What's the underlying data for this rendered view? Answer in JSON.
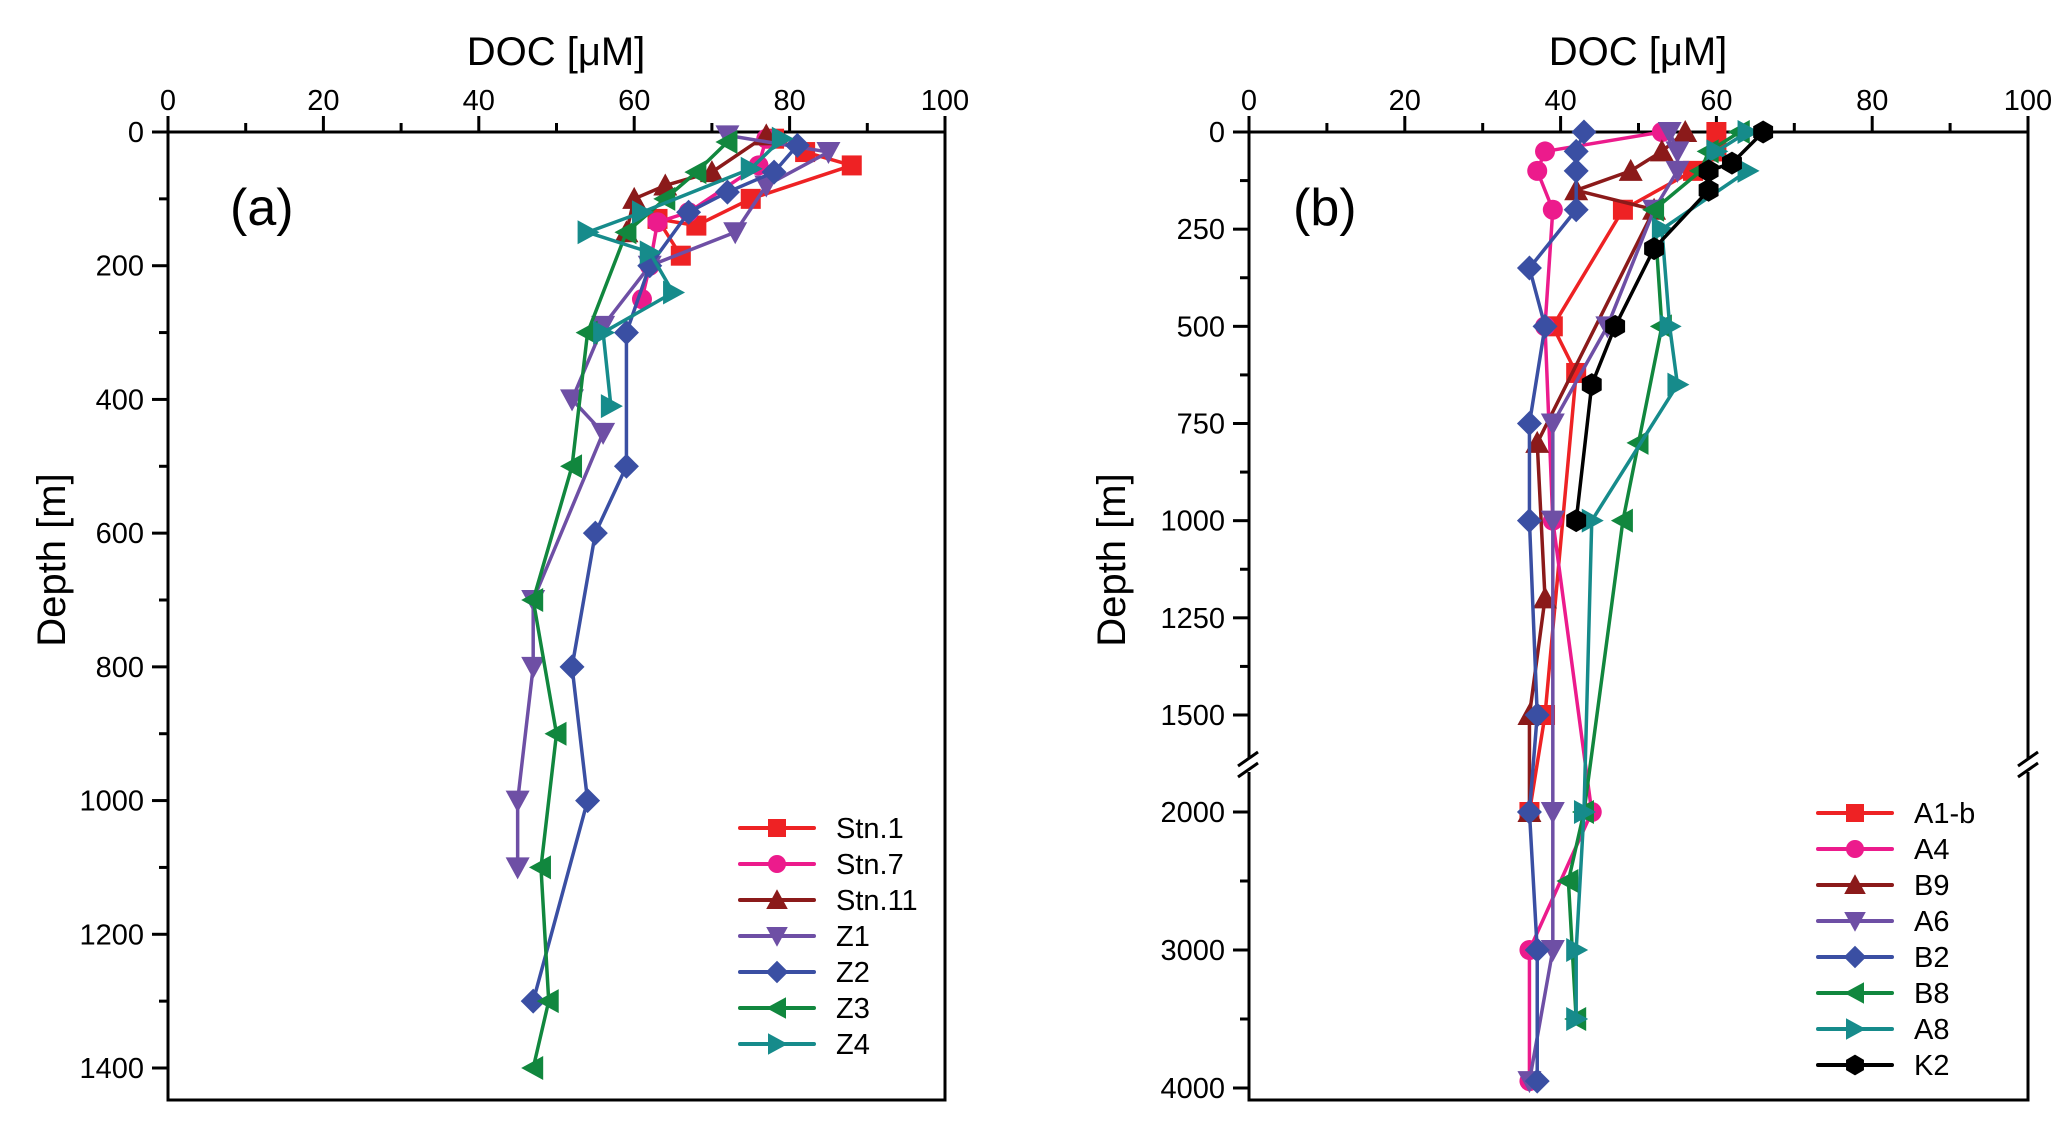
{
  "chart_data": [
    {
      "type": "line",
      "panel_label": "(a)",
      "xlabel": "DOC [μM]",
      "ylabel": "Depth [m]",
      "xlim": [
        0,
        100
      ],
      "ylim": [
        0,
        1400
      ],
      "y_inverted": true,
      "x_axis_position": "top",
      "xticks": [
        0,
        20,
        40,
        60,
        80,
        100
      ],
      "yticks": [
        0,
        200,
        400,
        600,
        800,
        1000,
        1200,
        1400
      ],
      "grid": false,
      "legend_position": "bottom-right",
      "series": [
        {
          "name": "Stn.1",
          "color": "#ee2224",
          "marker": "square",
          "points": [
            [
              78,
              10
            ],
            [
              82,
              30
            ],
            [
              88,
              50
            ],
            [
              75,
              100
            ],
            [
              68,
              140
            ],
            [
              63,
              130
            ],
            [
              66,
              185
            ]
          ]
        },
        {
          "name": "Stn.7",
          "color": "#ec1b8c",
          "marker": "circle",
          "points": [
            [
              77,
              10
            ],
            [
              76,
              50
            ],
            [
              67,
              120
            ],
            [
              63,
              135
            ],
            [
              62,
              200
            ],
            [
              61,
              250
            ]
          ]
        },
        {
          "name": "Stn.11",
          "color": "#8b1a1a",
          "marker": "triangle-up",
          "points": [
            [
              77,
              5
            ],
            [
              70,
              60
            ],
            [
              64,
              80
            ],
            [
              60,
              100
            ],
            [
              59,
              150
            ]
          ]
        },
        {
          "name": "Z1",
          "color": "#6e4fa5",
          "marker": "triangle-down",
          "points": [
            [
              72,
              5
            ],
            [
              85,
              30
            ],
            [
              77,
              80
            ],
            [
              73,
              150
            ],
            [
              62,
              200
            ],
            [
              56,
              290
            ],
            [
              52,
              400
            ],
            [
              56,
              450
            ],
            [
              47,
              700
            ],
            [
              47,
              800
            ],
            [
              45,
              1000
            ],
            [
              45,
              1100
            ]
          ]
        },
        {
          "name": "Z2",
          "color": "#3a4fa3",
          "marker": "diamond",
          "points": [
            [
              81,
              20
            ],
            [
              78,
              60
            ],
            [
              72,
              90
            ],
            [
              67,
              120
            ],
            [
              62,
              200
            ],
            [
              59,
              300
            ],
            [
              59,
              500
            ],
            [
              55,
              600
            ],
            [
              52,
              800
            ],
            [
              54,
              1000
            ],
            [
              47,
              1300
            ]
          ]
        },
        {
          "name": "Z3",
          "color": "#11873e",
          "marker": "triangle-left",
          "points": [
            [
              72,
              15
            ],
            [
              68,
              60
            ],
            [
              64,
              100
            ],
            [
              59,
              150
            ],
            [
              54,
              300
            ],
            [
              52,
              500
            ],
            [
              47,
              700
            ],
            [
              50,
              900
            ],
            [
              48,
              1100
            ],
            [
              49,
              1300
            ],
            [
              47,
              1400
            ]
          ]
        },
        {
          "name": "Z4",
          "color": "#168b8b",
          "marker": "triangle-right",
          "points": [
            [
              79,
              10
            ],
            [
              75,
              55
            ],
            [
              61,
              120
            ],
            [
              54,
              150
            ],
            [
              62,
              180
            ],
            [
              65,
              240
            ],
            [
              56,
              300
            ],
            [
              57,
              410
            ]
          ]
        }
      ]
    },
    {
      "type": "line",
      "panel_label": "(b)",
      "xlabel": "DOC [μM]",
      "ylabel": "Depth [m]",
      "xlim": [
        0,
        100
      ],
      "ylim": [
        0,
        4000
      ],
      "y_inverted": true,
      "y_axis_break": [
        1500,
        2000
      ],
      "x_axis_position": "top",
      "xticks": [
        0,
        20,
        40,
        60,
        80,
        100
      ],
      "yticks": [
        0,
        250,
        500,
        750,
        1000,
        1250,
        1500,
        2000,
        3000,
        4000
      ],
      "grid": false,
      "legend_position": "bottom-right",
      "series": [
        {
          "name": "A1-b",
          "color": "#ee2224",
          "marker": "square",
          "points": [
            [
              60,
              0
            ],
            [
              60,
              50
            ],
            [
              57,
              100
            ],
            [
              48,
              200
            ],
            [
              39,
              500
            ],
            [
              42,
              620
            ],
            [
              38,
              1500
            ],
            [
              36,
              2000
            ]
          ]
        },
        {
          "name": "A4",
          "color": "#ec1b8c",
          "marker": "circle",
          "points": [
            [
              53,
              0
            ],
            [
              38,
              50
            ],
            [
              37,
              100
            ],
            [
              39,
              200
            ],
            [
              38,
              500
            ],
            [
              39,
              1000
            ],
            [
              44,
              2000
            ],
            [
              36,
              3000
            ],
            [
              36,
              3950
            ]
          ]
        },
        {
          "name": "B9",
          "color": "#8b1a1a",
          "marker": "triangle-up",
          "points": [
            [
              56,
              0
            ],
            [
              53,
              50
            ],
            [
              49,
              100
            ],
            [
              42,
              150
            ],
            [
              52,
              200
            ],
            [
              37,
              800
            ],
            [
              38,
              1200
            ],
            [
              36,
              1500
            ],
            [
              36,
              2000
            ]
          ]
        },
        {
          "name": "A6",
          "color": "#6e4fa5",
          "marker": "triangle-down",
          "points": [
            [
              54,
              0
            ],
            [
              55,
              50
            ],
            [
              55,
              100
            ],
            [
              52,
              200
            ],
            [
              46,
              500
            ],
            [
              39,
              750
            ],
            [
              39,
              1000
            ],
            [
              39,
              2000
            ],
            [
              39,
              3000
            ],
            [
              36,
              3950
            ]
          ]
        },
        {
          "name": "B2",
          "color": "#3a4fa3",
          "marker": "diamond",
          "points": [
            [
              43,
              0
            ],
            [
              42,
              50
            ],
            [
              42,
              100
            ],
            [
              42,
              200
            ],
            [
              36,
              350
            ],
            [
              38,
              500
            ],
            [
              36,
              750
            ],
            [
              36,
              1000
            ],
            [
              37,
              1500
            ],
            [
              36,
              2000
            ],
            [
              37,
              3000
            ],
            [
              37,
              3950
            ]
          ]
        },
        {
          "name": "B8",
          "color": "#11873e",
          "marker": "triangle-left",
          "points": [
            [
              63,
              0
            ],
            [
              59,
              50
            ],
            [
              58,
              100
            ],
            [
              52,
              200
            ],
            [
              53,
              500
            ],
            [
              50,
              800
            ],
            [
              48,
              1000
            ],
            [
              43,
              2000
            ],
            [
              41,
              2500
            ],
            [
              42,
              3500
            ]
          ]
        },
        {
          "name": "A8",
          "color": "#168b8b",
          "marker": "triangle-right",
          "points": [
            [
              64,
              0
            ],
            [
              60,
              50
            ],
            [
              64,
              100
            ],
            [
              53,
              250
            ],
            [
              54,
              500
            ],
            [
              55,
              650
            ],
            [
              44,
              1000
            ],
            [
              43,
              2000
            ],
            [
              42,
              3000
            ],
            [
              42,
              3500
            ]
          ]
        },
        {
          "name": "K2",
          "color": "#000000",
          "marker": "hexagon",
          "points": [
            [
              66,
              0
            ],
            [
              62,
              80
            ],
            [
              59,
              100
            ],
            [
              59,
              150
            ],
            [
              52,
              300
            ],
            [
              47,
              500
            ],
            [
              44,
              650
            ],
            [
              42,
              1000
            ]
          ]
        }
      ]
    }
  ]
}
